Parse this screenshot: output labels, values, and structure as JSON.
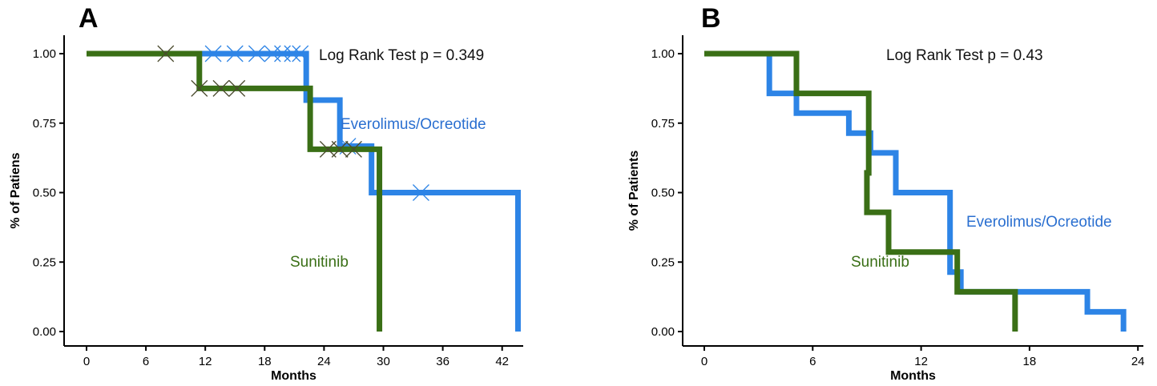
{
  "chart_data": [
    {
      "type": "line",
      "step": true,
      "panel_label": "A",
      "annotation": "Log Rank Test p = 0.349",
      "xlabel": "Months",
      "ylabel": "% of Patiens",
      "xlim": [
        0,
        44
      ],
      "ylim": [
        0,
        1
      ],
      "xticks": [
        0,
        6,
        12,
        18,
        24,
        30,
        36,
        42
      ],
      "yticks": [
        "0.00",
        "0.25",
        "0.50",
        "0.75",
        "1.00"
      ],
      "grid": false,
      "series": [
        {
          "name": "Everolimus/Ocreotide",
          "color": "#2d84e6",
          "steps": [
            [
              0,
              1.0
            ],
            [
              22.2,
              1.0
            ],
            [
              22.2,
              0.833
            ],
            [
              25.6,
              0.833
            ],
            [
              25.6,
              0.667
            ],
            [
              28.8,
              0.667
            ],
            [
              28.8,
              0.5
            ],
            [
              43.6,
              0.5
            ],
            [
              43.6,
              0.0
            ]
          ],
          "censored": [
            [
              12.8,
              1.0
            ],
            [
              15.0,
              1.0
            ],
            [
              17.2,
              1.0
            ],
            [
              18.8,
              1.0
            ],
            [
              19.8,
              1.0
            ],
            [
              20.8,
              1.0
            ],
            [
              21.6,
              1.0
            ],
            [
              26.4,
              0.667
            ],
            [
              33.8,
              0.5
            ]
          ]
        },
        {
          "name": "Sunitinib",
          "color": "#3a6f16",
          "steps": [
            [
              0,
              1.0
            ],
            [
              11.4,
              1.0
            ],
            [
              11.4,
              0.875
            ],
            [
              22.6,
              0.875
            ],
            [
              22.6,
              0.656
            ],
            [
              29.6,
              0.656
            ],
            [
              29.6,
              0.0
            ]
          ],
          "censored": [
            [
              8.0,
              1.0
            ],
            [
              11.4,
              0.875
            ],
            [
              13.6,
              0.875
            ],
            [
              15.2,
              0.875
            ],
            [
              24.4,
              0.656
            ],
            [
              25.6,
              0.656
            ],
            [
              27.0,
              0.656
            ]
          ]
        }
      ]
    },
    {
      "type": "line",
      "step": true,
      "panel_label": "B",
      "annotation": "Log Rank Test p = 0.43",
      "xlabel": "Months",
      "ylabel": "% of Patients",
      "xlim": [
        0,
        24
      ],
      "ylim": [
        0,
        1
      ],
      "xticks": [
        0,
        6,
        12,
        18,
        24
      ],
      "yticks": [
        "0.00",
        "0.25",
        "0.50",
        "0.75",
        "1.00"
      ],
      "grid": false,
      "series": [
        {
          "name": "Everolimus/Ocreotide",
          "color": "#2d84e6",
          "steps": [
            [
              0,
              1.0
            ],
            [
              3.6,
              1.0
            ],
            [
              3.6,
              0.857
            ],
            [
              5.1,
              0.857
            ],
            [
              5.1,
              0.786
            ],
            [
              8.0,
              0.786
            ],
            [
              8.0,
              0.714
            ],
            [
              9.2,
              0.714
            ],
            [
              9.2,
              0.643
            ],
            [
              10.6,
              0.643
            ],
            [
              10.6,
              0.5
            ],
            [
              13.6,
              0.5
            ],
            [
              13.6,
              0.214
            ],
            [
              14.2,
              0.214
            ],
            [
              14.2,
              0.143
            ],
            [
              21.2,
              0.143
            ],
            [
              21.2,
              0.071
            ],
            [
              23.2,
              0.071
            ],
            [
              23.2,
              0.0
            ]
          ],
          "censored": []
        },
        {
          "name": "Sunitinib",
          "color": "#3a6f16",
          "steps": [
            [
              0,
              1.0
            ],
            [
              5.1,
              1.0
            ],
            [
              5.1,
              0.857
            ],
            [
              9.1,
              0.857
            ],
            [
              9.1,
              0.571
            ],
            [
              9.0,
              0.571
            ],
            [
              9.0,
              0.429
            ],
            [
              10.2,
              0.429
            ],
            [
              10.2,
              0.286
            ],
            [
              14.0,
              0.286
            ],
            [
              14.0,
              0.143
            ],
            [
              17.2,
              0.143
            ],
            [
              17.2,
              0.0
            ]
          ],
          "censored": []
        }
      ]
    }
  ]
}
